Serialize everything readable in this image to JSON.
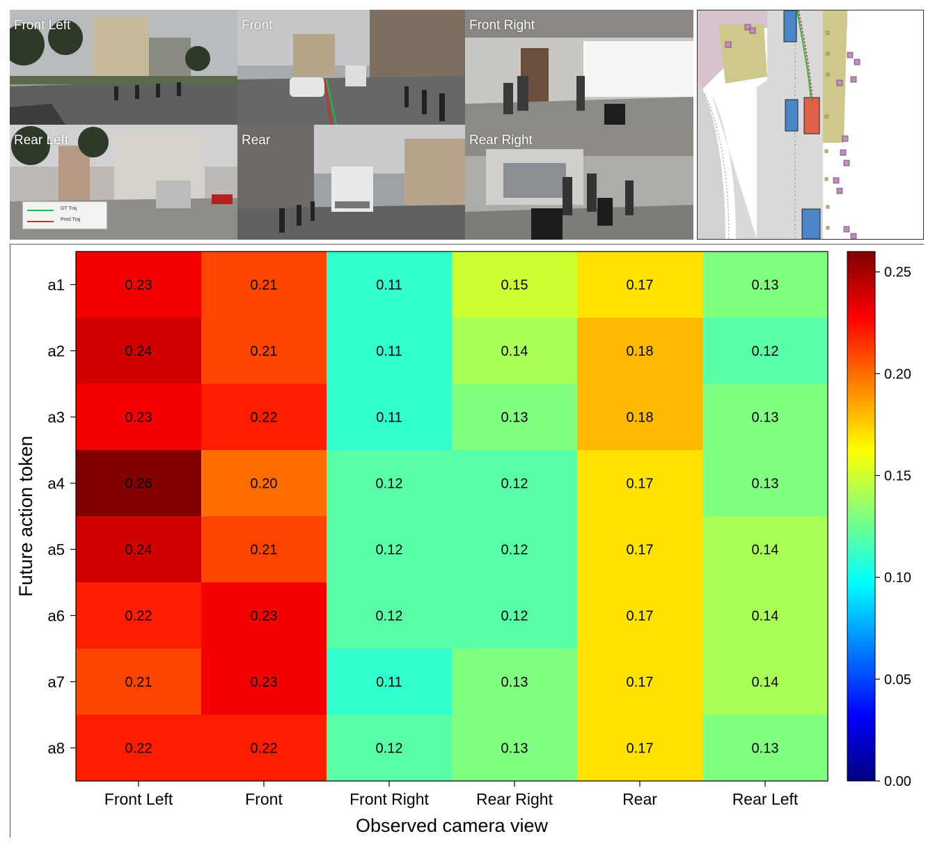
{
  "cameras": [
    {
      "label": "Front Left"
    },
    {
      "label": "Front"
    },
    {
      "label": "Front Right"
    },
    {
      "label": "Rear Left"
    },
    {
      "label": "Rear"
    },
    {
      "label": "Rear Right"
    }
  ],
  "legend": {
    "gt_label": "GT Traj",
    "pred_label": "Pred Traj",
    "gt_color": "#22bb44",
    "pred_color": "#dd2222"
  },
  "chart_data": {
    "type": "heatmap",
    "xlabel": "Observed camera view",
    "ylabel": "Future action token",
    "x_categories": [
      "Front Left",
      "Front",
      "Front Right",
      "Rear Right",
      "Rear",
      "Rear Left"
    ],
    "y_categories": [
      "a1",
      "a2",
      "a3",
      "a4",
      "a5",
      "a6",
      "a7",
      "a8"
    ],
    "values": [
      [
        0.23,
        0.21,
        0.11,
        0.15,
        0.17,
        0.13
      ],
      [
        0.24,
        0.21,
        0.11,
        0.14,
        0.18,
        0.12
      ],
      [
        0.23,
        0.22,
        0.11,
        0.13,
        0.18,
        0.13
      ],
      [
        0.26,
        0.2,
        0.12,
        0.12,
        0.17,
        0.13
      ],
      [
        0.24,
        0.21,
        0.12,
        0.12,
        0.17,
        0.14
      ],
      [
        0.22,
        0.23,
        0.12,
        0.12,
        0.17,
        0.14
      ],
      [
        0.21,
        0.23,
        0.11,
        0.13,
        0.17,
        0.14
      ],
      [
        0.22,
        0.22,
        0.12,
        0.13,
        0.17,
        0.13
      ]
    ],
    "colormap": "jet",
    "vmin": 0.0,
    "vmax": 0.26,
    "colorbar_ticks": [
      "0.00",
      "0.05",
      "0.10",
      "0.15",
      "0.20",
      "0.25"
    ]
  }
}
